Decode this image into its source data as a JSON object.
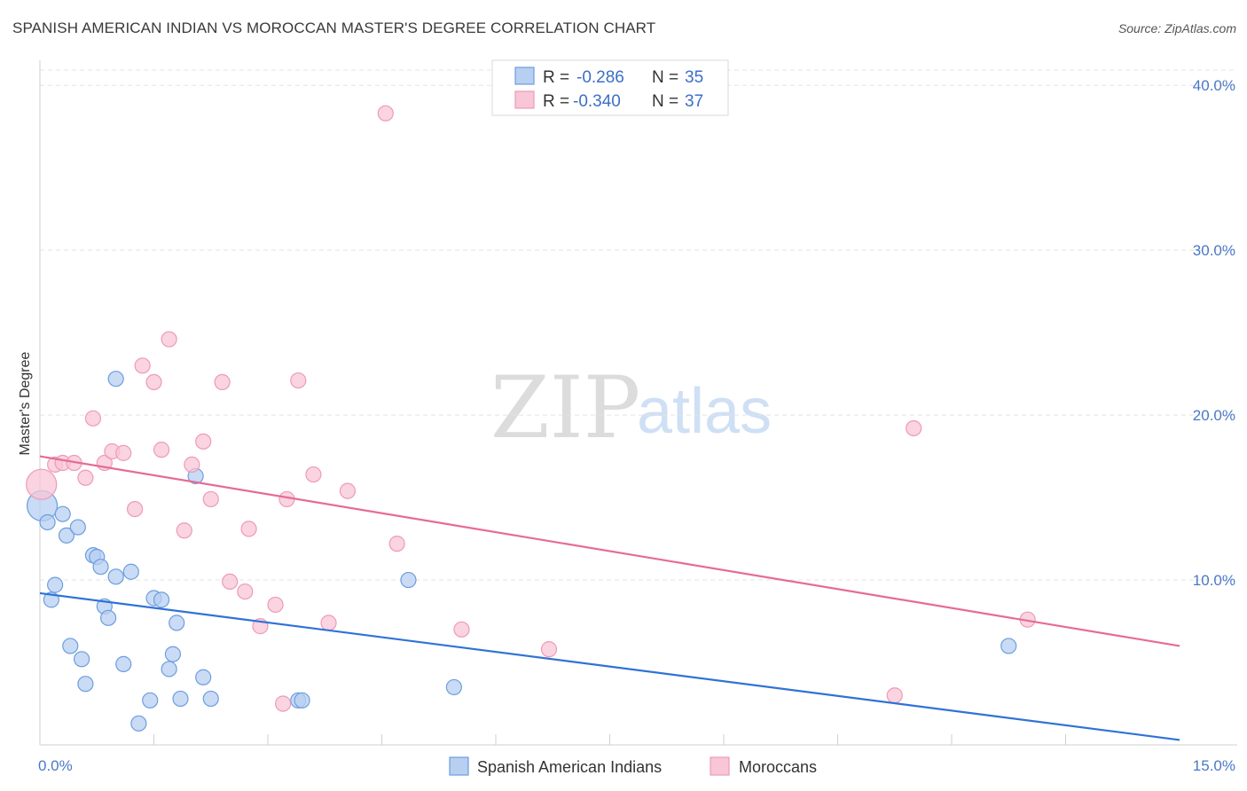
{
  "header": {
    "title": "SPANISH AMERICAN INDIAN VS MOROCCAN MASTER'S DEGREE CORRELATION CHART",
    "source": "Source: ZipAtlas.com"
  },
  "watermark": {
    "zip": "ZIP",
    "atlas": "atlas"
  },
  "legend": {
    "r_label": "R =",
    "n_label": "N =",
    "rows": [
      {
        "r": "-0.286",
        "n": "35",
        "color": "#5b8fd9"
      },
      {
        "r": "-0.340",
        "n": "37",
        "color": "#ee7fa3"
      }
    ]
  },
  "colors": {
    "blue_fill": "#b7cff1",
    "blue_stroke": "#6d9ddf",
    "blue_line": "#2f72d6",
    "pink_fill": "#f8c6d6",
    "pink_stroke": "#ee9ab7",
    "pink_line": "#e56b97",
    "grid": "#e3e3e3",
    "axis_text": "#4a78c8"
  },
  "chart_data": {
    "type": "scatter",
    "title": "SPANISH AMERICAN INDIAN VS MOROCCAN MASTER'S DEGREE CORRELATION CHART",
    "xlabel": "",
    "ylabel": "Master's Degree",
    "xlim": [
      0,
      15
    ],
    "ylim": [
      0,
      42
    ],
    "x_tick_labels": [
      {
        "value": 0,
        "label": "0.0%",
        "anchor": "start"
      },
      {
        "value": 15,
        "label": "15.0%",
        "anchor": "end"
      }
    ],
    "y_tick_labels": [
      {
        "value": 10,
        "label": "10.0%"
      },
      {
        "value": 20,
        "label": "20.0%"
      },
      {
        "value": 30,
        "label": "30.0%"
      },
      {
        "value": 40,
        "label": "40.0%"
      }
    ],
    "x_minor_ticks": [
      1.5,
      3,
      4.5,
      6,
      7.5,
      9,
      10.5,
      12,
      13.5
    ],
    "grid": true,
    "series": [
      {
        "name": "Spanish American Indians",
        "color": "#6d9ddf",
        "trend": {
          "x": [
            0,
            15
          ],
          "y": [
            9.2,
            0.3
          ]
        },
        "points": [
          {
            "x": 0.03,
            "y": 14.5,
            "big": true
          },
          {
            "x": 0.1,
            "y": 13.5
          },
          {
            "x": 0.3,
            "y": 14.0
          },
          {
            "x": 0.35,
            "y": 12.7
          },
          {
            "x": 0.5,
            "y": 13.2
          },
          {
            "x": 0.2,
            "y": 9.7
          },
          {
            "x": 0.15,
            "y": 8.8
          },
          {
            "x": 0.7,
            "y": 11.5
          },
          {
            "x": 0.75,
            "y": 11.4
          },
          {
            "x": 0.8,
            "y": 10.8
          },
          {
            "x": 1.0,
            "y": 10.2
          },
          {
            "x": 1.2,
            "y": 10.5
          },
          {
            "x": 0.85,
            "y": 8.4
          },
          {
            "x": 0.9,
            "y": 7.7
          },
          {
            "x": 1.5,
            "y": 8.9
          },
          {
            "x": 1.6,
            "y": 8.8
          },
          {
            "x": 1.8,
            "y": 7.4
          },
          {
            "x": 0.4,
            "y": 6.0
          },
          {
            "x": 0.55,
            "y": 5.2
          },
          {
            "x": 0.6,
            "y": 3.7
          },
          {
            "x": 1.1,
            "y": 4.9
          },
          {
            "x": 1.75,
            "y": 5.5
          },
          {
            "x": 1.7,
            "y": 4.6
          },
          {
            "x": 2.15,
            "y": 4.1
          },
          {
            "x": 1.45,
            "y": 2.7
          },
          {
            "x": 1.85,
            "y": 2.8
          },
          {
            "x": 2.25,
            "y": 2.8
          },
          {
            "x": 1.3,
            "y": 1.3
          },
          {
            "x": 1.0,
            "y": 22.2
          },
          {
            "x": 2.05,
            "y": 16.3
          },
          {
            "x": 3.4,
            "y": 2.7
          },
          {
            "x": 3.45,
            "y": 2.7
          },
          {
            "x": 4.85,
            "y": 10.0
          },
          {
            "x": 5.45,
            "y": 3.5
          },
          {
            "x": 12.75,
            "y": 6.0
          }
        ]
      },
      {
        "name": "Moroccans",
        "color": "#ee9ab7",
        "trend": {
          "x": [
            0,
            15
          ],
          "y": [
            17.5,
            6.0
          ]
        },
        "points": [
          {
            "x": 0.02,
            "y": 15.8,
            "big": true
          },
          {
            "x": 0.2,
            "y": 17.0
          },
          {
            "x": 0.3,
            "y": 17.1
          },
          {
            "x": 0.45,
            "y": 17.1
          },
          {
            "x": 0.6,
            "y": 16.2
          },
          {
            "x": 0.7,
            "y": 19.8
          },
          {
            "x": 0.85,
            "y": 17.1
          },
          {
            "x": 0.95,
            "y": 17.8
          },
          {
            "x": 1.1,
            "y": 17.7
          },
          {
            "x": 1.25,
            "y": 14.3
          },
          {
            "x": 1.35,
            "y": 23.0
          },
          {
            "x": 1.5,
            "y": 22.0
          },
          {
            "x": 1.6,
            "y": 17.9
          },
          {
            "x": 1.7,
            "y": 24.6
          },
          {
            "x": 1.9,
            "y": 13.0
          },
          {
            "x": 2.0,
            "y": 17.0
          },
          {
            "x": 2.15,
            "y": 18.4
          },
          {
            "x": 2.25,
            "y": 14.9
          },
          {
            "x": 2.4,
            "y": 22.0
          },
          {
            "x": 2.5,
            "y": 9.9
          },
          {
            "x": 2.7,
            "y": 9.3
          },
          {
            "x": 2.75,
            "y": 13.1
          },
          {
            "x": 2.9,
            "y": 7.2
          },
          {
            "x": 3.1,
            "y": 8.5
          },
          {
            "x": 3.25,
            "y": 14.9
          },
          {
            "x": 3.4,
            "y": 22.1
          },
          {
            "x": 3.6,
            "y": 16.4
          },
          {
            "x": 3.8,
            "y": 7.4
          },
          {
            "x": 4.05,
            "y": 15.4
          },
          {
            "x": 3.2,
            "y": 2.5
          },
          {
            "x": 4.55,
            "y": 38.3
          },
          {
            "x": 4.7,
            "y": 12.2
          },
          {
            "x": 5.55,
            "y": 7.0
          },
          {
            "x": 6.7,
            "y": 5.8
          },
          {
            "x": 11.25,
            "y": 3.0
          },
          {
            "x": 11.5,
            "y": 19.2
          },
          {
            "x": 13.0,
            "y": 7.6
          }
        ]
      }
    ]
  }
}
